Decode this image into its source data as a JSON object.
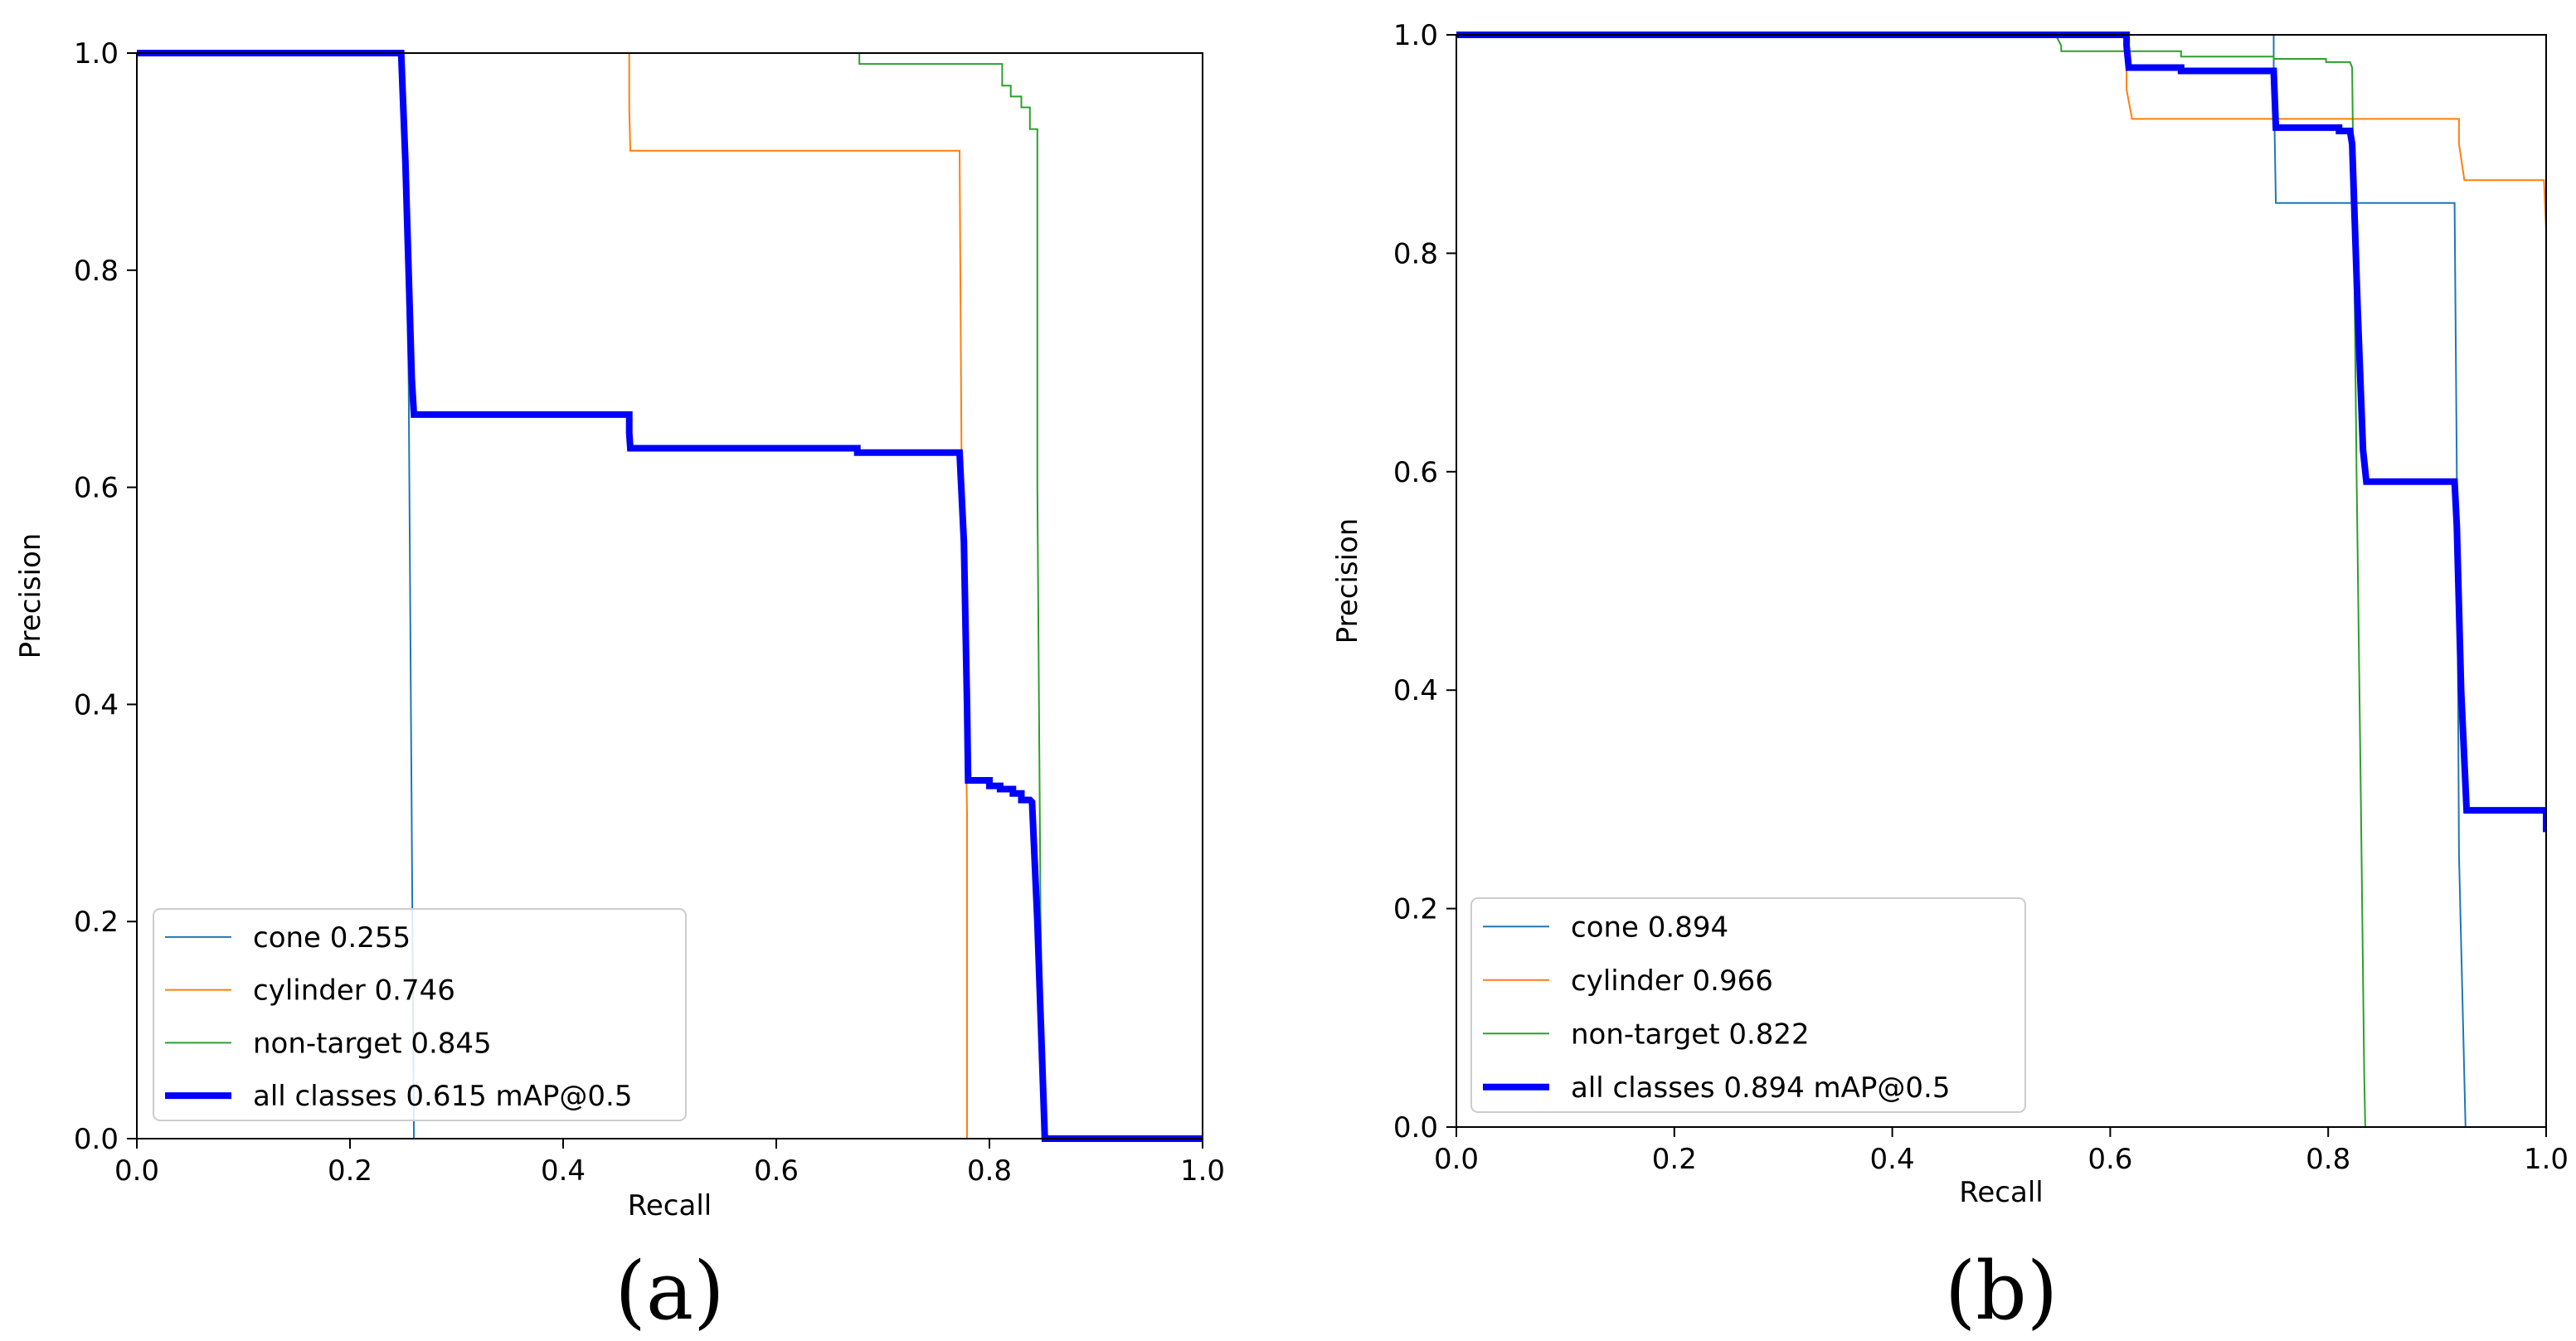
{
  "chart_data": [
    {
      "type": "line",
      "panel_label": "(a)",
      "xlabel": "Recall",
      "ylabel": "Precision",
      "xlim": [
        0,
        1
      ],
      "ylim": [
        0,
        1
      ],
      "xticks": [
        "0.0",
        "0.2",
        "0.4",
        "0.6",
        "0.8",
        "1.0"
      ],
      "yticks": [
        "0.0",
        "0.2",
        "0.4",
        "0.6",
        "0.8",
        "1.0"
      ],
      "legend_position": "lower-left",
      "series": [
        {
          "name": "cone 0.255",
          "color": "#1f77b4",
          "width": 2,
          "x": [
            0,
            0.248,
            0.251,
            0.255,
            0.26,
            0.26
          ],
          "y": [
            1.0,
            1.0,
            0.9,
            0.7,
            0.0,
            0.0
          ]
        },
        {
          "name": "cylinder 0.746",
          "color": "#ff7f0e",
          "width": 2,
          "x": [
            0.462,
            0.462,
            0.463,
            0.772,
            0.774,
            0.779,
            0.779
          ],
          "y": [
            1.0,
            0.95,
            0.91,
            0.91,
            0.6,
            0.3,
            0.0
          ]
        },
        {
          "name": "non-target 0.845",
          "color": "#2ca02c",
          "width": 2,
          "x": [
            0.677,
            0.678,
            0.678,
            0.812,
            0.812,
            0.82,
            0.82,
            0.83,
            0.83,
            0.838,
            0.838,
            0.845,
            0.845,
            0.848,
            0.852
          ],
          "y": [
            1.0,
            1.0,
            0.99,
            0.99,
            0.97,
            0.97,
            0.96,
            0.96,
            0.95,
            0.95,
            0.93,
            0.93,
            0.6,
            0.2,
            0.0
          ]
        },
        {
          "name": "all classes 0.615 mAP@0.5",
          "color": "#0000ff",
          "width": 8,
          "x": [
            0,
            0.248,
            0.252,
            0.258,
            0.26,
            0.462,
            0.462,
            0.463,
            0.676,
            0.676,
            0.772,
            0.776,
            0.779,
            0.78,
            0.8,
            0.8,
            0.81,
            0.81,
            0.822,
            0.822,
            0.83,
            0.83,
            0.838,
            0.84,
            0.845,
            0.852,
            1.0
          ],
          "y": [
            1.0,
            1.0,
            0.9,
            0.7,
            0.667,
            0.667,
            0.65,
            0.636,
            0.636,
            0.632,
            0.632,
            0.55,
            0.4,
            0.33,
            0.33,
            0.325,
            0.325,
            0.322,
            0.322,
            0.318,
            0.318,
            0.312,
            0.312,
            0.31,
            0.2,
            0.0,
            0.0
          ]
        }
      ]
    },
    {
      "type": "line",
      "panel_label": "(b)",
      "xlabel": "Recall",
      "ylabel": "Precision",
      "xlim": [
        0,
        1
      ],
      "ylim": [
        0,
        1
      ],
      "xticks": [
        "0.0",
        "0.2",
        "0.4",
        "0.6",
        "0.8",
        "1.0"
      ],
      "yticks": [
        "0.0",
        "0.2",
        "0.4",
        "0.6",
        "0.8",
        "1.0"
      ],
      "legend_position": "lower-left",
      "series": [
        {
          "name": "cone 0.894",
          "color": "#1f77b4",
          "width": 2,
          "x": [
            0.75,
            0.75,
            0.752,
            0.916,
            0.918,
            0.92,
            0.926,
            0.926,
            1.0
          ],
          "y": [
            1.0,
            0.96,
            0.846,
            0.846,
            0.6,
            0.25,
            0.0,
            0.0,
            0.0
          ]
        },
        {
          "name": "cylinder 0.966",
          "color": "#ff7f0e",
          "width": 2,
          "x": [
            0,
            0.615,
            0.615,
            0.62,
            0.92,
            0.92,
            0.925,
            0.998,
            1.0
          ],
          "y": [
            1.0,
            1.0,
            0.95,
            0.923,
            0.923,
            0.9,
            0.867,
            0.867,
            0.82
          ]
        },
        {
          "name": "non-target 0.822",
          "color": "#2ca02c",
          "width": 2,
          "x": [
            0.55,
            0.555,
            0.555,
            0.665,
            0.665,
            0.75,
            0.75,
            0.798,
            0.798,
            0.82,
            0.822,
            0.826,
            0.83,
            0.833,
            0.834
          ],
          "y": [
            1.0,
            0.99,
            0.985,
            0.985,
            0.98,
            0.98,
            0.978,
            0.978,
            0.975,
            0.975,
            0.97,
            0.6,
            0.3,
            0.05,
            0.0
          ]
        },
        {
          "name": "all classes 0.894 mAP@0.5",
          "color": "#0000ff",
          "width": 8,
          "x": [
            0,
            0.615,
            0.615,
            0.617,
            0.665,
            0.665,
            0.75,
            0.752,
            0.81,
            0.81,
            0.82,
            0.822,
            0.827,
            0.832,
            0.835,
            0.916,
            0.918,
            0.922,
            0.927,
            1.0,
            1.0
          ],
          "y": [
            1.0,
            1.0,
            0.99,
            0.97,
            0.97,
            0.967,
            0.967,
            0.915,
            0.915,
            0.912,
            0.912,
            0.9,
            0.75,
            0.62,
            0.591,
            0.591,
            0.55,
            0.4,
            0.29,
            0.29,
            0.27
          ]
        }
      ]
    }
  ]
}
